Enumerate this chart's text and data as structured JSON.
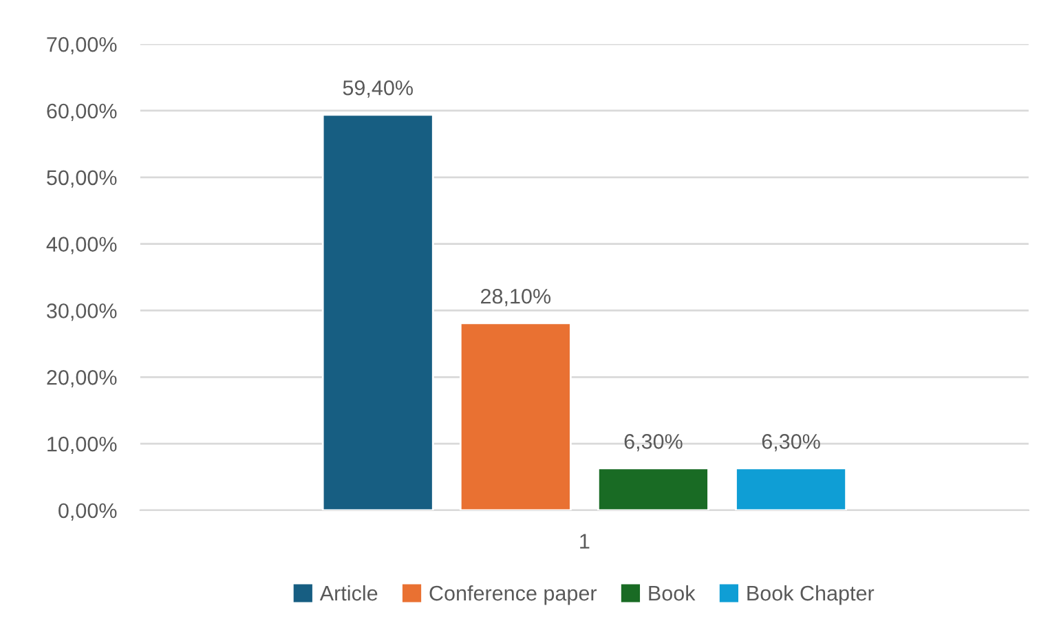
{
  "chart_data": {
    "type": "bar",
    "categories": [
      "1"
    ],
    "series": [
      {
        "name": "Article",
        "color": "#175e82",
        "values": [
          59.4
        ],
        "value_labels": [
          "59,40%"
        ]
      },
      {
        "name": "Conference paper",
        "color": "#e97132",
        "values": [
          28.1
        ],
        "value_labels": [
          "28,10%"
        ]
      },
      {
        "name": "Book",
        "color": "#196b24",
        "values": [
          6.3
        ],
        "value_labels": [
          "6,30%"
        ]
      },
      {
        "name": "Book Chapter",
        "color": "#0f9ed5",
        "values": [
          6.3
        ],
        "value_labels": [
          "6,30%"
        ]
      }
    ],
    "ylim": [
      0,
      70
    ],
    "yticks": [
      {
        "value": 0,
        "label": "0,00%"
      },
      {
        "value": 10,
        "label": "10,00%"
      },
      {
        "value": 20,
        "label": "20,00%"
      },
      {
        "value": 30,
        "label": "30,00%"
      },
      {
        "value": 40,
        "label": "40,00%"
      },
      {
        "value": 50,
        "label": "50,00%"
      },
      {
        "value": 60,
        "label": "60,00%"
      },
      {
        "value": 70,
        "label": "70,00%"
      }
    ],
    "grid": "y",
    "legend": "bottom"
  }
}
